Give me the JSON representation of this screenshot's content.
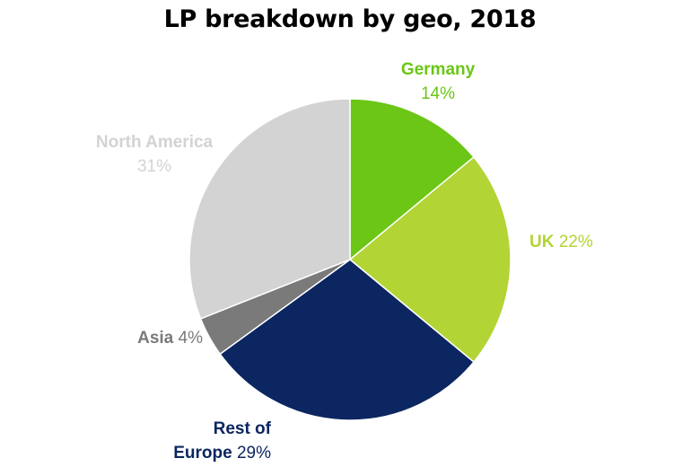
{
  "chart_data": {
    "type": "pie",
    "title": "LP breakdown by geo, 2018",
    "categories": [
      "Germany",
      "UK",
      "Rest of Europe",
      "Asia",
      "North America"
    ],
    "values": [
      14,
      22,
      29,
      4,
      31
    ],
    "unit": "%",
    "colors": [
      "#6bc615",
      "#b2d435",
      "#0b2660",
      "#7a7a7a",
      "#d3d3d3"
    ],
    "start_direction": "top",
    "direction": "clockwise",
    "labels": [
      {
        "name": "Germany",
        "value": "14%"
      },
      {
        "name": "UK",
        "value": "22%"
      },
      {
        "name_line1": "Rest of",
        "name_line2": "Europe",
        "value": "29%"
      },
      {
        "name": "Asia",
        "value": "4%"
      },
      {
        "name": "North America",
        "value": "31%"
      }
    ]
  }
}
